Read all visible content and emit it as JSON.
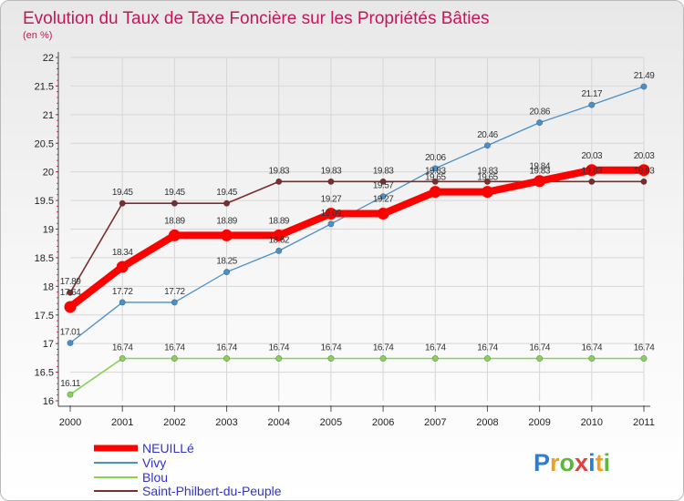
{
  "chart_data": {
    "type": "line",
    "title": "Evolution du Taux de Taxe Foncière sur les Propriétés Bâties",
    "ylabel": "(en %)",
    "xlabel": "",
    "x": [
      "2000",
      "2001",
      "2002",
      "2003",
      "2004",
      "2005",
      "2006",
      "2007",
      "2008",
      "2009",
      "2010",
      "2011"
    ],
    "ylim": [
      16,
      22
    ],
    "yticks": [
      "16",
      "16.5",
      "17",
      "17.5",
      "18",
      "18.5",
      "19",
      "19.5",
      "20",
      "20.5",
      "21",
      "21.5",
      "22"
    ],
    "series": [
      {
        "name": "NEUILLé",
        "color": "#ff0000",
        "values": [
          17.64,
          18.34,
          18.89,
          18.89,
          18.89,
          19.27,
          19.27,
          19.65,
          19.65,
          19.84,
          20.03,
          20.03
        ],
        "labels": [
          "17.64",
          "18.34",
          "18.89",
          "18.89",
          "18.89",
          "19.27",
          "19.27",
          "19.65",
          "19.65",
          "19.84",
          "20.03",
          "20.03"
        ]
      },
      {
        "name": "Vivy",
        "color": "#4a90c8",
        "values": [
          17.01,
          17.72,
          17.72,
          18.25,
          18.62,
          19.09,
          19.57,
          20.06,
          20.46,
          20.86,
          21.17,
          21.49
        ],
        "labels": [
          "17.01",
          "17.72",
          "17.72",
          "18.25",
          "18.62",
          "19.09",
          "19.57",
          "20.06",
          "20.46",
          "20.86",
          "21.17",
          "21.49"
        ]
      },
      {
        "name": "Blou",
        "color": "#88d258",
        "values": [
          16.11,
          16.74,
          16.74,
          16.74,
          16.74,
          16.74,
          16.74,
          16.74,
          16.74,
          16.74,
          16.74,
          16.74
        ],
        "labels": [
          "16.11",
          "16.74",
          "16.74",
          "16.74",
          "16.74",
          "16.74",
          "16.74",
          "16.74",
          "16.74",
          "16.74",
          "16.74",
          "16.74"
        ]
      },
      {
        "name": "Saint-Philbert-du-Peuple",
        "color": "#7a2e2e",
        "values": [
          17.89,
          19.45,
          19.45,
          19.45,
          19.83,
          19.83,
          19.83,
          19.83,
          19.83,
          19.83,
          19.83,
          19.83
        ],
        "labels": [
          "17.89",
          "19.45",
          "19.45",
          "19.45",
          "19.83",
          "19.83",
          "19.83",
          "19.83",
          "19.83",
          "19.83",
          "19.83",
          "19.83"
        ]
      }
    ]
  },
  "logo": {
    "text": "Proxiti"
  }
}
